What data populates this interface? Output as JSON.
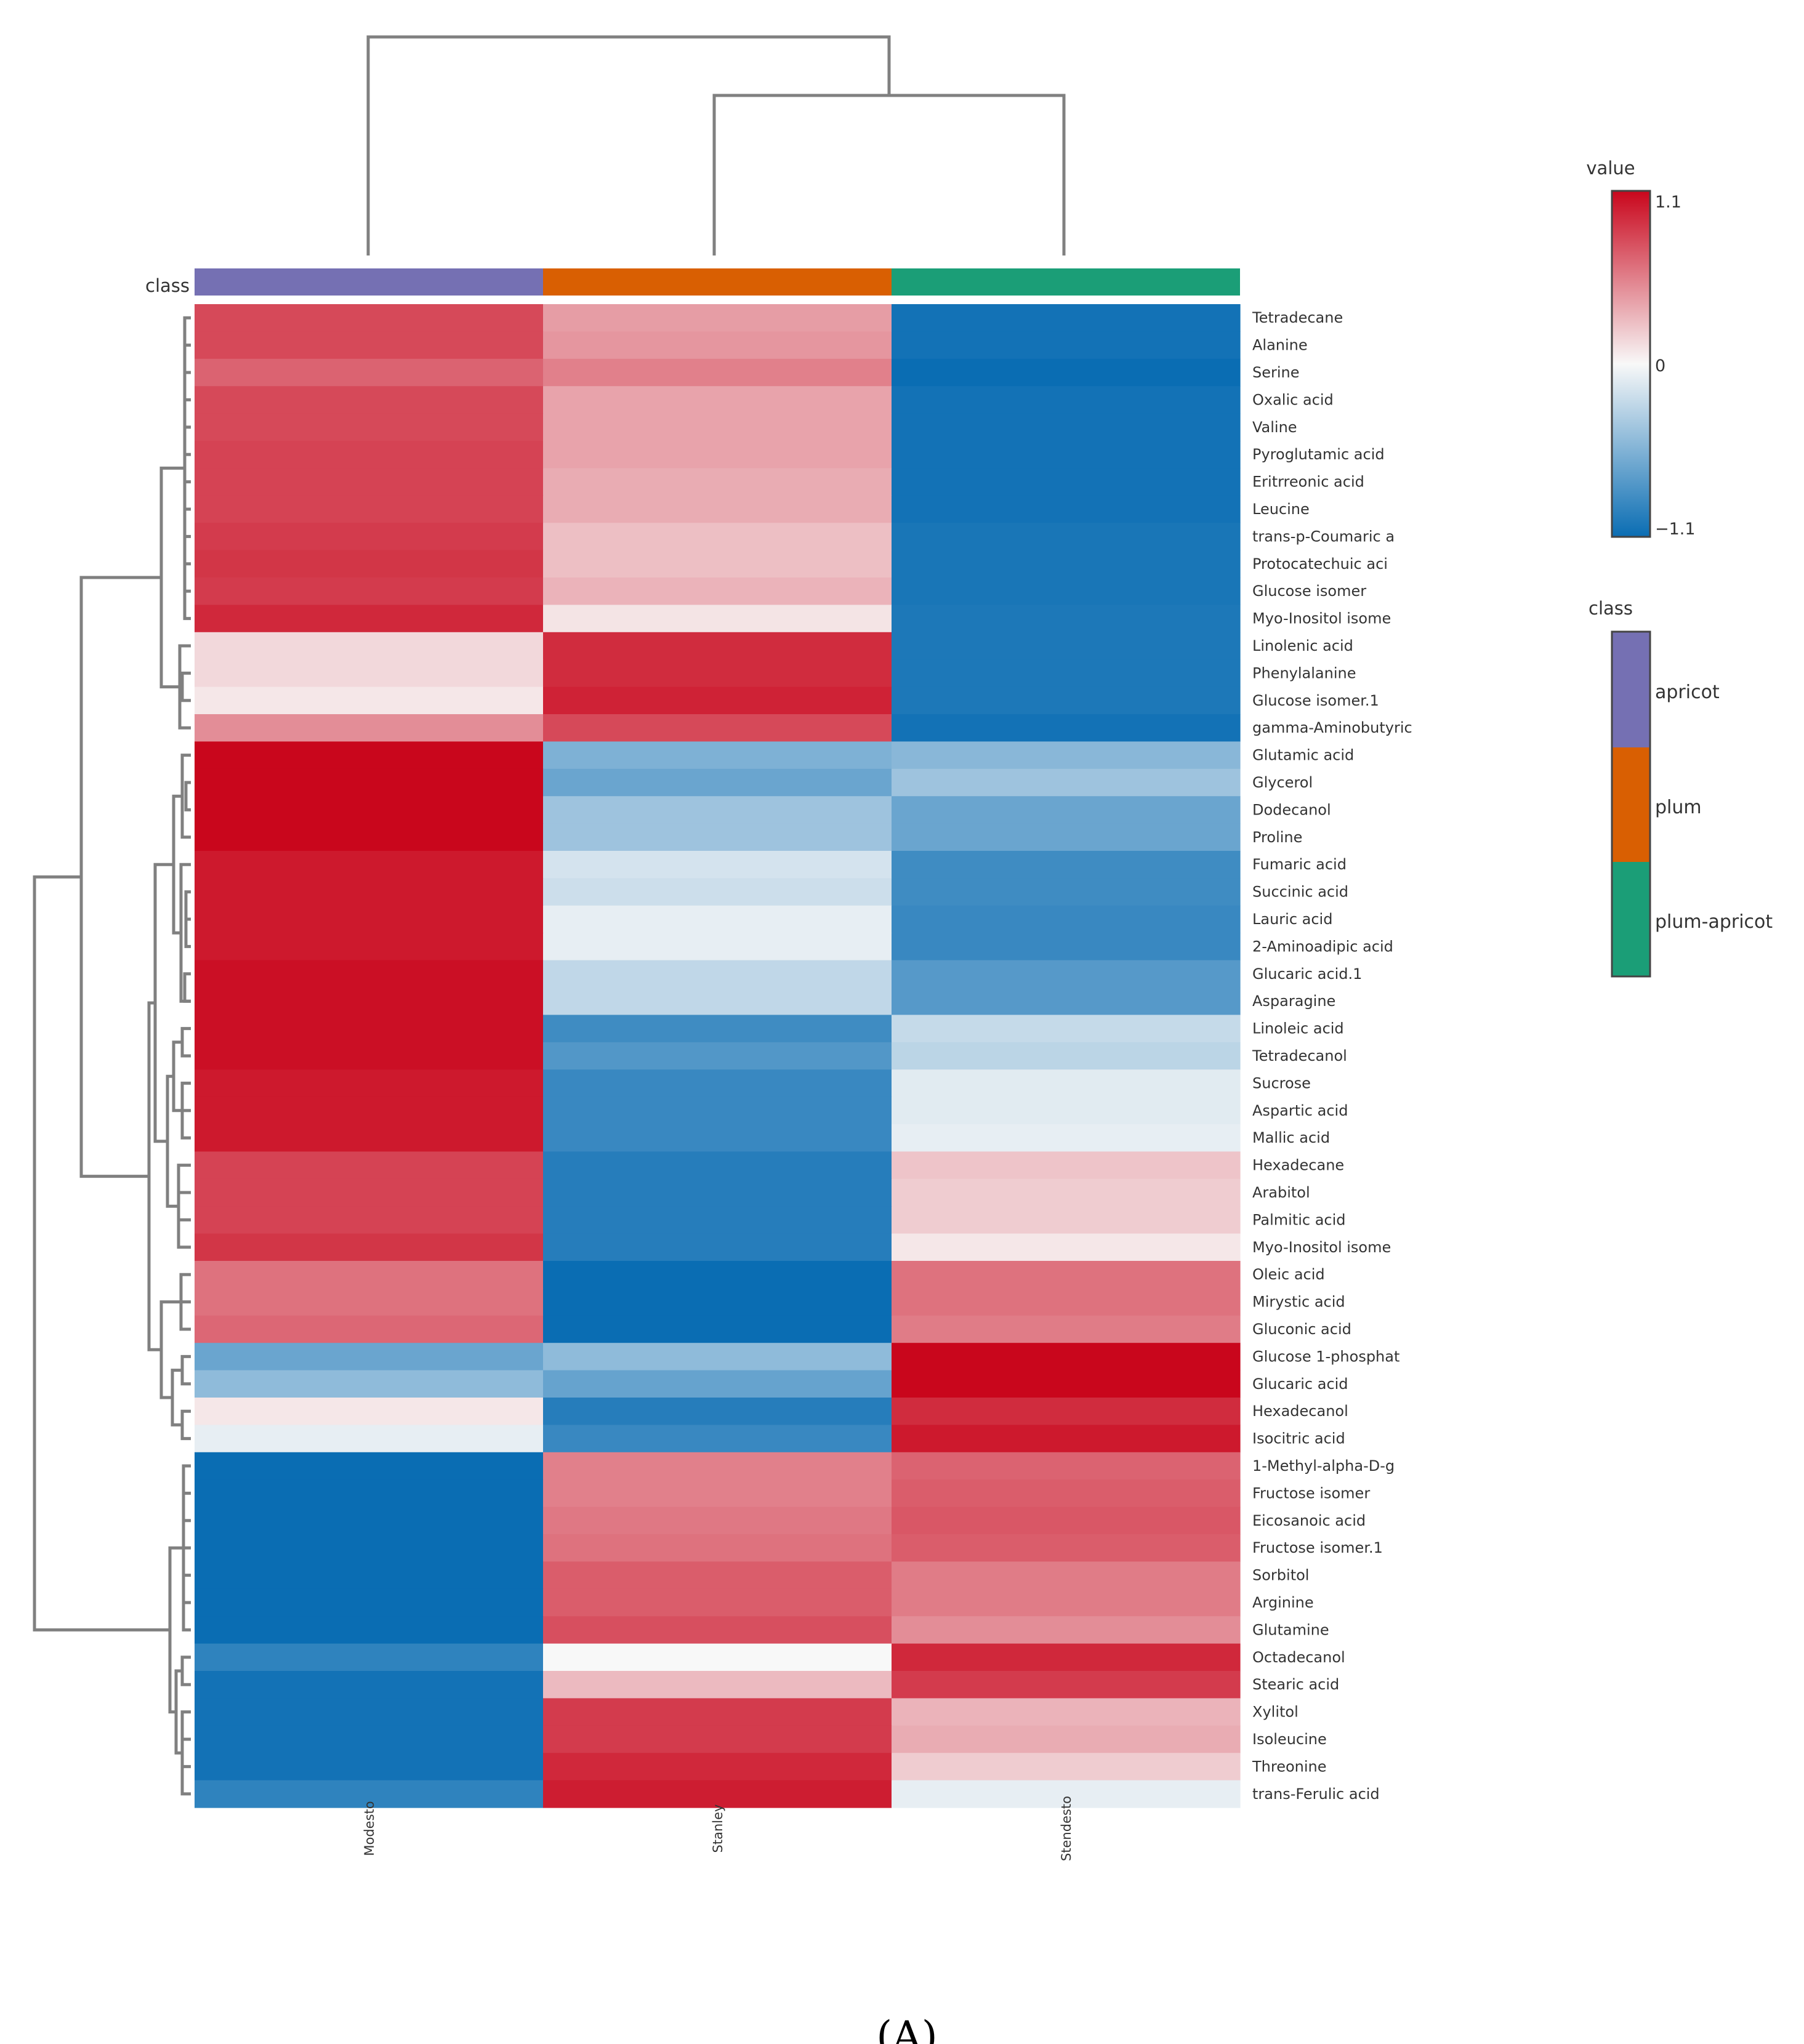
{
  "chart_data": {
    "type": "heatmap",
    "caption": "(A)",
    "class_label": "class",
    "columns": [
      "Modesto",
      "Stanley",
      "Stendesto"
    ],
    "column_classes": [
      "apricot",
      "plum",
      "plum-apricot"
    ],
    "rows": [
      "Tetradecane",
      "Alanine",
      "Serine",
      "Oxalic acid",
      "Valine",
      "Pyroglutamic acid",
      "Eritrreonic acid",
      "Leucine",
      "trans-p-Coumaric a",
      "Protocatechuic aci",
      "Glucose isomer",
      "Myo-Inositol isome",
      "Linolenic acid",
      "Phenylalanine",
      "Glucose isomer.1",
      "gamma-Aminobutyric",
      "Glutamic acid",
      "Glycerol",
      "Dodecanol",
      "Proline",
      "Fumaric acid",
      "Succinic acid",
      "Lauric acid",
      "2-Aminoadipic acid",
      "Glucaric acid.1",
      "Asparagine",
      "Linoleic acid",
      "Tetradecanol",
      "Sucrose",
      "Aspartic acid",
      "Mallic acid",
      "Hexadecane",
      "Arabitol",
      "Palmitic acid",
      "Myo-Inositol isome",
      "Oleic acid",
      "Mirystic acid",
      "Gluconic acid",
      "Glucose 1-phosphat",
      "Glucaric acid",
      "Hexadecanol",
      "Isocitric acid",
      "1-Methyl-alpha-D-g",
      "Fructose isomer",
      "Eicosanoic acid",
      "Fructose isomer.1",
      "Sorbitol",
      "Arginine",
      "Glutamine",
      "Octadecanol",
      "Stearic acid",
      "Xylitol",
      "Isoleucine",
      "Threonine",
      "trans-Ferulic acid"
    ],
    "values": [
      [
        0.75,
        0.35,
        -1.05
      ],
      [
        0.75,
        0.38,
        -1.05
      ],
      [
        0.62,
        0.48,
        -1.1
      ],
      [
        0.75,
        0.32,
        -1.05
      ],
      [
        0.75,
        0.32,
        -1.05
      ],
      [
        0.78,
        0.32,
        -1.05
      ],
      [
        0.78,
        0.28,
        -1.05
      ],
      [
        0.78,
        0.28,
        -1.05
      ],
      [
        0.82,
        0.2,
        -1.02
      ],
      [
        0.85,
        0.2,
        -1.02
      ],
      [
        0.82,
        0.25,
        -1.02
      ],
      [
        0.92,
        0.06,
        -1.0
      ],
      [
        0.1,
        0.9,
        -1.0
      ],
      [
        0.1,
        0.9,
        -1.0
      ],
      [
        0.05,
        0.95,
        -1.0
      ],
      [
        0.42,
        0.75,
        -1.05
      ],
      [
        1.1,
        -0.5,
        -0.45
      ],
      [
        1.1,
        -0.6,
        -0.35
      ],
      [
        1.1,
        -0.35,
        -0.6
      ],
      [
        1.1,
        -0.35,
        -0.6
      ],
      [
        1.0,
        -0.12,
        -0.82
      ],
      [
        1.0,
        -0.15,
        -0.82
      ],
      [
        1.0,
        -0.05,
        -0.85
      ],
      [
        1.0,
        -0.05,
        -0.85
      ],
      [
        1.05,
        -0.2,
        -0.7
      ],
      [
        1.05,
        -0.2,
        -0.7
      ],
      [
        1.05,
        -0.82,
        -0.18
      ],
      [
        1.05,
        -0.72,
        -0.22
      ],
      [
        1.0,
        -0.85,
        -0.07
      ],
      [
        1.0,
        -0.85,
        -0.07
      ],
      [
        1.0,
        -0.85,
        -0.05
      ],
      [
        0.78,
        -0.95,
        0.18
      ],
      [
        0.78,
        -0.95,
        0.15
      ],
      [
        0.78,
        -0.95,
        0.15
      ],
      [
        0.85,
        -0.95,
        0.05
      ],
      [
        0.55,
        -1.1,
        0.55
      ],
      [
        0.55,
        -1.1,
        0.55
      ],
      [
        0.6,
        -1.1,
        0.5
      ],
      [
        -0.6,
        -0.42,
        1.1
      ],
      [
        -0.42,
        -0.62,
        1.1
      ],
      [
        0.05,
        -0.95,
        0.9
      ],
      [
        -0.05,
        -0.85,
        1.0
      ],
      [
        -1.1,
        0.48,
        0.62
      ],
      [
        -1.1,
        0.48,
        0.65
      ],
      [
        -1.1,
        0.52,
        0.68
      ],
      [
        -1.1,
        0.55,
        0.65
      ],
      [
        -1.1,
        0.65,
        0.5
      ],
      [
        -1.1,
        0.65,
        0.5
      ],
      [
        -1.1,
        0.72,
        0.42
      ],
      [
        -0.9,
        0.0,
        0.92
      ],
      [
        -1.05,
        0.22,
        0.82
      ],
      [
        -1.05,
        0.82,
        0.25
      ],
      [
        -1.05,
        0.82,
        0.28
      ],
      [
        -1.05,
        0.92,
        0.15
      ],
      [
        -0.9,
        0.98,
        -0.05
      ]
    ],
    "color_scale": {
      "title": "value",
      "min": -1.1,
      "mid": 0,
      "max": 1.1,
      "min_label": "−1.1",
      "mid_label": "0",
      "max_label": "1.1",
      "low_color": "#0a6db3",
      "mid_color": "#f8f8f8",
      "high_color": "#c9061c"
    },
    "class_legend": {
      "title": "class",
      "entries": [
        {
          "name": "apricot",
          "color": "#7570b3"
        },
        {
          "name": "plum",
          "color": "#d95f02"
        },
        {
          "name": "plum-apricot",
          "color": "#1b9e77"
        }
      ]
    }
  }
}
